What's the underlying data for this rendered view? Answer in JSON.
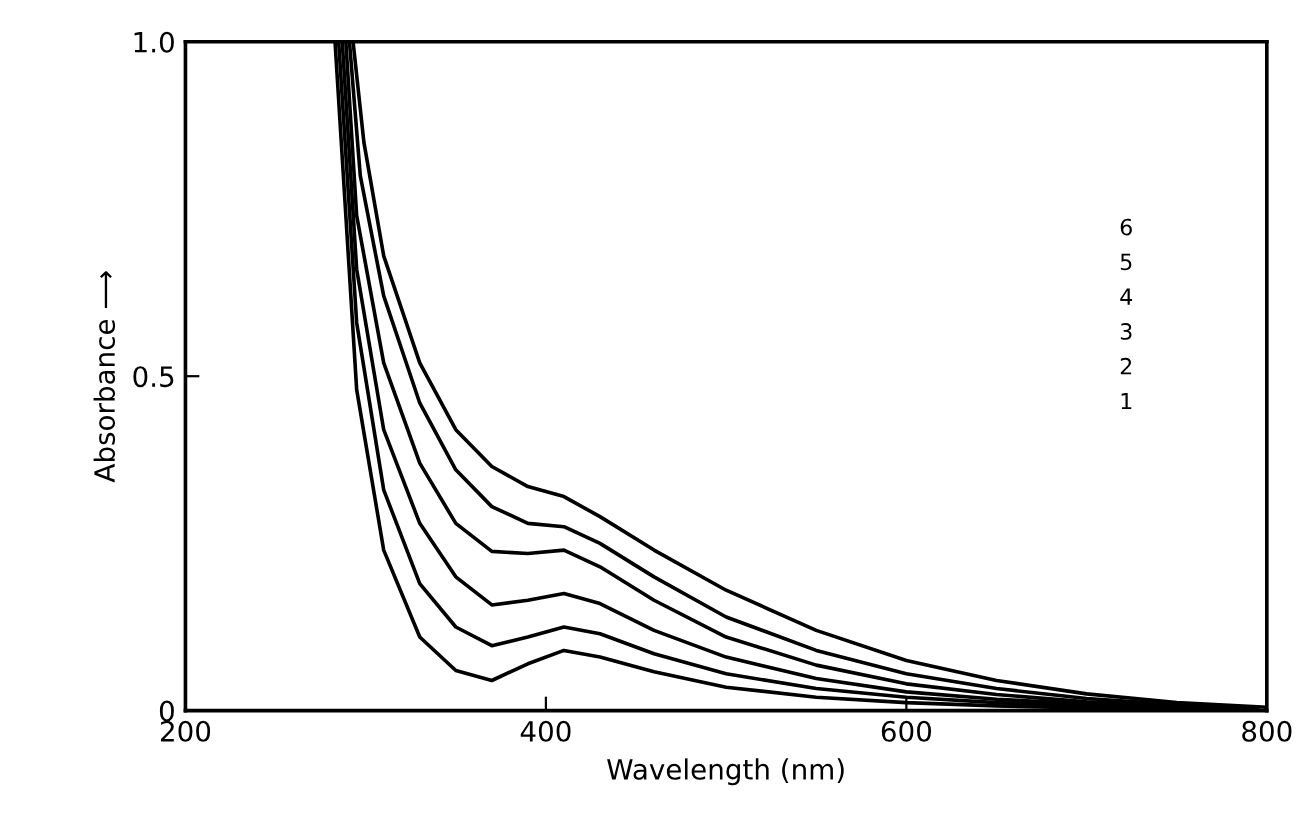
{
  "chart_data": {
    "type": "line",
    "xlabel": "Wavelength (nm)",
    "ylabel": "Absorbance ⟶",
    "annotations": [
      "6",
      "5",
      "4",
      "3",
      "2",
      "1"
    ],
    "series": [
      {
        "color": "#000000",
        "x": [
          283,
          295,
          310,
          330,
          350,
          370,
          390,
          410,
          430,
          460,
          500,
          550,
          600,
          650,
          700,
          750,
          775
        ],
        "values": [
          1.0,
          0.48,
          0.24,
          0.11,
          0.06,
          0.045,
          0.07,
          0.09,
          0.08,
          0.058,
          0.035,
          0.02,
          0.012,
          0.007,
          0.004,
          0.002,
          0.001
        ]
      },
      {
        "color": "#000000",
        "x": [
          285,
          295,
          310,
          330,
          350,
          370,
          390,
          410,
          430,
          460,
          500,
          550,
          600,
          650,
          700,
          750,
          780
        ],
        "values": [
          1.0,
          0.58,
          0.33,
          0.19,
          0.125,
          0.097,
          0.11,
          0.125,
          0.115,
          0.085,
          0.055,
          0.033,
          0.02,
          0.012,
          0.007,
          0.004,
          0.002
        ]
      },
      {
        "color": "#000000",
        "x": [
          287,
          295,
          310,
          330,
          350,
          370,
          390,
          410,
          430,
          460,
          500,
          550,
          600,
          650,
          700,
          750,
          785
        ],
        "values": [
          1.0,
          0.66,
          0.42,
          0.28,
          0.2,
          0.158,
          0.165,
          0.175,
          0.16,
          0.12,
          0.08,
          0.048,
          0.028,
          0.017,
          0.01,
          0.005,
          0.002
        ]
      },
      {
        "color": "#000000",
        "x": [
          289,
          295,
          310,
          330,
          350,
          370,
          390,
          410,
          430,
          460,
          500,
          550,
          600,
          650,
          700,
          750,
          790
        ],
        "values": [
          1.0,
          0.74,
          0.52,
          0.37,
          0.28,
          0.238,
          0.235,
          0.24,
          0.215,
          0.165,
          0.11,
          0.068,
          0.04,
          0.024,
          0.013,
          0.007,
          0.003
        ]
      },
      {
        "color": "#000000",
        "x": [
          291,
          297,
          310,
          330,
          350,
          370,
          390,
          410,
          430,
          460,
          500,
          550,
          600,
          650,
          700,
          750,
          795
        ],
        "values": [
          1.0,
          0.8,
          0.62,
          0.46,
          0.36,
          0.305,
          0.28,
          0.275,
          0.25,
          0.2,
          0.14,
          0.09,
          0.055,
          0.033,
          0.018,
          0.009,
          0.004
        ]
      },
      {
        "color": "#000000",
        "x": [
          293,
          299,
          310,
          330,
          350,
          370,
          390,
          410,
          430,
          460,
          500,
          550,
          600,
          650,
          700,
          750,
          800
        ],
        "values": [
          1.0,
          0.85,
          0.68,
          0.52,
          0.42,
          0.365,
          0.335,
          0.32,
          0.29,
          0.24,
          0.18,
          0.12,
          0.075,
          0.045,
          0.025,
          0.012,
          0.005
        ]
      }
    ],
    "xlim": [
      200,
      800
    ],
    "ylim": [
      0,
      1.0
    ],
    "xticks": [
      200,
      400,
      600,
      800
    ],
    "yticks": [
      0,
      0.5,
      {
        "value": 1.0,
        "label": "1.0"
      }
    ],
    "grid": false,
    "legend": false,
    "marker": "none",
    "line_style": "solid"
  }
}
